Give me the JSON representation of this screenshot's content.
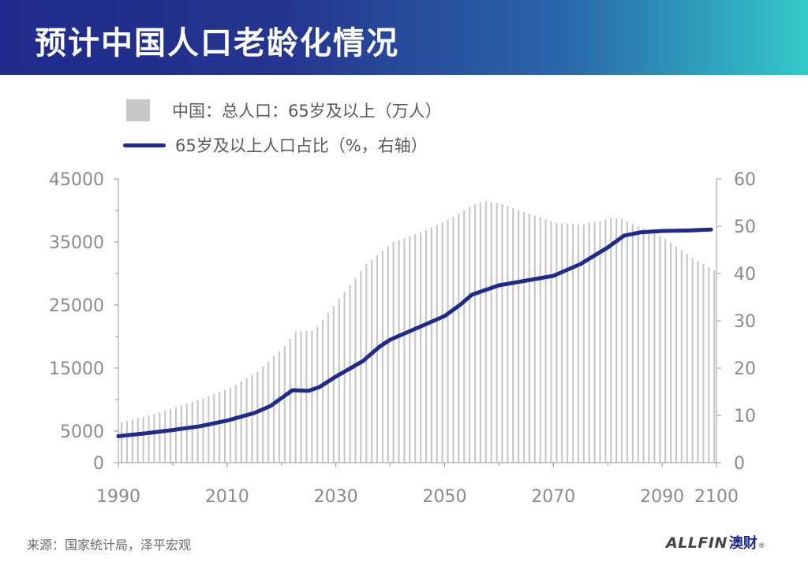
{
  "header": {
    "title": "预计中国人口老龄化情况"
  },
  "legend": {
    "bar_label": "中国：总人口：65岁及以上（万人）",
    "line_label": "65岁及以上人口占比（%，右轴）"
  },
  "source": "来源：国家统计局，泽平宏观",
  "logo": {
    "text": "ALLFIN",
    "cn": "澳财",
    "reg": "®"
  },
  "colors": {
    "bar": "#c8c8c8",
    "line": "#1f2a8a",
    "axis": "#999999",
    "tick_label": "#8a8a8a"
  },
  "chart_data": {
    "type": "bar+line",
    "x_range": [
      1990,
      2100
    ],
    "x_ticks": [
      "1990",
      "2010",
      "2030",
      "2050",
      "2070",
      "2090",
      "2100"
    ],
    "y_left": {
      "range": [
        0,
        45000
      ],
      "ticks": [
        "0",
        "5000",
        "15000",
        "25000",
        "35000",
        "45000"
      ]
    },
    "y_right": {
      "range": [
        0,
        60
      ],
      "ticks": [
        "0",
        "10",
        "20",
        "30",
        "40",
        "50",
        "60"
      ]
    },
    "grid": false,
    "legend_position": "top-left",
    "series": [
      {
        "name": "中国：总人口：65岁及以上（万人）",
        "type": "bar",
        "axis": "left",
        "points": [
          [
            1990,
            6400
          ],
          [
            1995,
            7500
          ],
          [
            2000,
            8800
          ],
          [
            2005,
            10200
          ],
          [
            2010,
            11900
          ],
          [
            2015,
            14400
          ],
          [
            2020,
            18500
          ],
          [
            2022,
            20800
          ],
          [
            2025,
            20900
          ],
          [
            2026,
            21500
          ],
          [
            2030,
            26000
          ],
          [
            2035,
            31500
          ],
          [
            2040,
            35000
          ],
          [
            2045,
            36500
          ],
          [
            2050,
            38500
          ],
          [
            2053,
            40000
          ],
          [
            2055,
            41000
          ],
          [
            2057,
            41500
          ],
          [
            2060,
            41000
          ],
          [
            2065,
            39500
          ],
          [
            2070,
            38000
          ],
          [
            2075,
            37800
          ],
          [
            2080,
            38800
          ],
          [
            2082,
            38700
          ],
          [
            2085,
            37500
          ],
          [
            2088,
            36500
          ],
          [
            2090,
            35500
          ],
          [
            2095,
            32500
          ],
          [
            2099,
            30500
          ]
        ]
      },
      {
        "name": "65岁及以上人口占比（%，右轴）",
        "type": "line",
        "axis": "right",
        "points": [
          [
            1990,
            5.6
          ],
          [
            1995,
            6.2
          ],
          [
            2000,
            6.9
          ],
          [
            2005,
            7.7
          ],
          [
            2010,
            8.9
          ],
          [
            2015,
            10.5
          ],
          [
            2018,
            12.0
          ],
          [
            2022,
            15.3
          ],
          [
            2025,
            15.2
          ],
          [
            2027,
            16.0
          ],
          [
            2030,
            18.2
          ],
          [
            2035,
            21.5
          ],
          [
            2038,
            24.5
          ],
          [
            2040,
            26.0
          ],
          [
            2045,
            28.5
          ],
          [
            2050,
            31.0
          ],
          [
            2053,
            33.5
          ],
          [
            2055,
            35.5
          ],
          [
            2060,
            37.5
          ],
          [
            2065,
            38.5
          ],
          [
            2070,
            39.5
          ],
          [
            2075,
            42.0
          ],
          [
            2080,
            45.5
          ],
          [
            2083,
            48.0
          ],
          [
            2086,
            48.7
          ],
          [
            2090,
            49.0
          ],
          [
            2095,
            49.1
          ],
          [
            2099,
            49.3
          ]
        ]
      }
    ]
  }
}
